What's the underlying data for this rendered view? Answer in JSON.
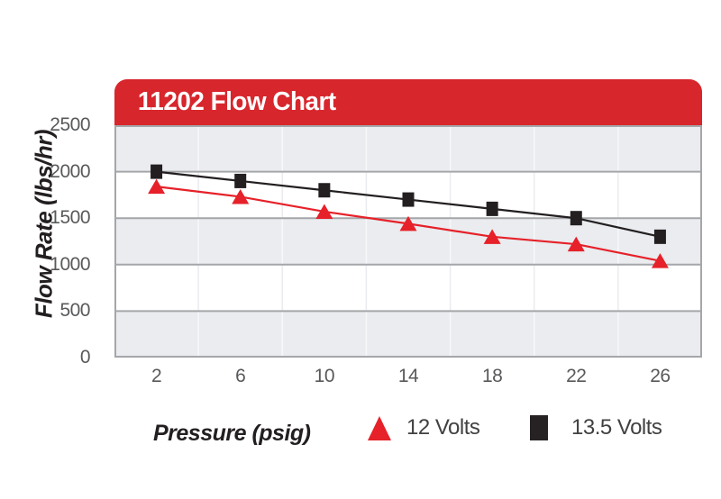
{
  "header": {
    "title": "11202 Flow Chart",
    "bg_color": "#d7262c",
    "text_color": "#ffffff"
  },
  "axes": {
    "ylabel": "Flow Rate (lbs/hr)",
    "xlabel": "Pressure (psig)"
  },
  "legend": {
    "xlabel": "Pressure (psig)",
    "items": [
      {
        "label": "12 Volts",
        "marker": "triangle",
        "color": "#e62129"
      },
      {
        "label": "13.5 Volts",
        "marker": "square",
        "color": "#262223"
      }
    ]
  },
  "chart_data": {
    "type": "line",
    "title": "11202 Flow Chart",
    "xlabel": "Pressure (psig)",
    "ylabel": "Flow Rate (lbs/hr)",
    "categories": [
      2,
      6,
      10,
      14,
      18,
      22,
      26
    ],
    "series": [
      {
        "name": "12 Volts",
        "marker": "triangle",
        "color": "#e62129",
        "values": [
          1840,
          1730,
          1570,
          1440,
          1300,
          1220,
          1040
        ]
      },
      {
        "name": "13.5 Volts",
        "marker": "square",
        "color": "#231f20",
        "values": [
          2000,
          1900,
          1800,
          1700,
          1600,
          1500,
          1300
        ]
      }
    ],
    "ylim": [
      0,
      2500
    ],
    "yticks": [
      0,
      500,
      1000,
      1500,
      2000,
      2500
    ],
    "grid": "horizontal gridlines every 500; faint vertical separators between categories; alternating background bands",
    "band_colors": [
      "#eaecef",
      "#ffffff"
    ],
    "gridline_color": "#a4a6a9",
    "legend_position": "bottom"
  }
}
